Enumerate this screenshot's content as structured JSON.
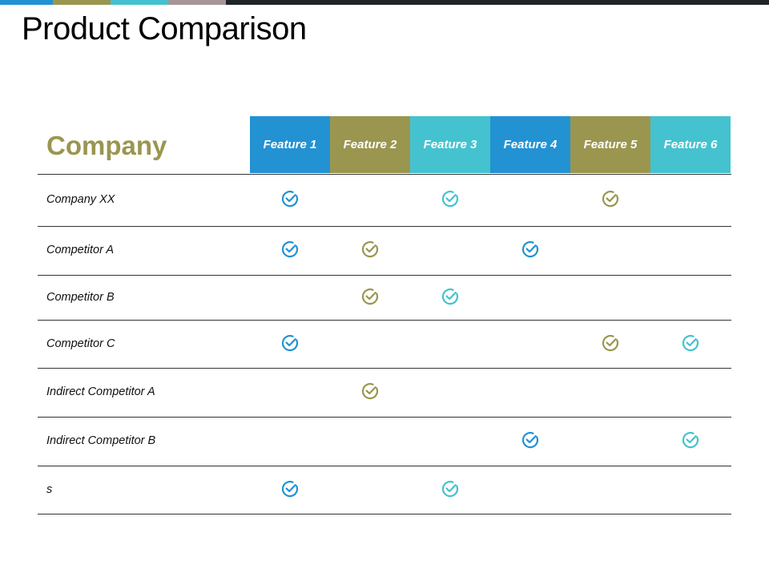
{
  "colors": {
    "blue": "#2392d3",
    "olive": "#9a9650",
    "teal": "#45c2cf",
    "mauve": "#a79595",
    "dark": "#1f2428"
  },
  "title": "Product Comparison",
  "table": {
    "company_header": "Company",
    "features": [
      {
        "label": "Feature 1",
        "color": "#2392d3"
      },
      {
        "label": "Feature 2",
        "color": "#9a9650"
      },
      {
        "label": "Feature 3",
        "color": "#45c2cf"
      },
      {
        "label": "Feature 4",
        "color": "#2392d3"
      },
      {
        "label": "Feature 5",
        "color": "#9a9650"
      },
      {
        "label": "Feature 6",
        "color": "#45c2cf"
      }
    ],
    "rows": [
      {
        "label": "Company XX",
        "checks": [
          true,
          false,
          true,
          false,
          true,
          false
        ]
      },
      {
        "label": "Competitor A",
        "checks": [
          true,
          true,
          false,
          true,
          false,
          false
        ]
      },
      {
        "label": "Competitor B",
        "checks": [
          false,
          true,
          true,
          false,
          false,
          false
        ]
      },
      {
        "label": "Competitor C",
        "checks": [
          true,
          false,
          false,
          false,
          true,
          true
        ]
      },
      {
        "label": "Indirect Competitor A",
        "checks": [
          false,
          true,
          false,
          false,
          false,
          false
        ]
      },
      {
        "label": "Indirect Competitor B",
        "checks": [
          false,
          false,
          false,
          true,
          false,
          true
        ]
      },
      {
        "label": "s",
        "checks": [
          true,
          false,
          true,
          false,
          false,
          false
        ]
      }
    ],
    "check_icon": "check-circle-icon"
  }
}
